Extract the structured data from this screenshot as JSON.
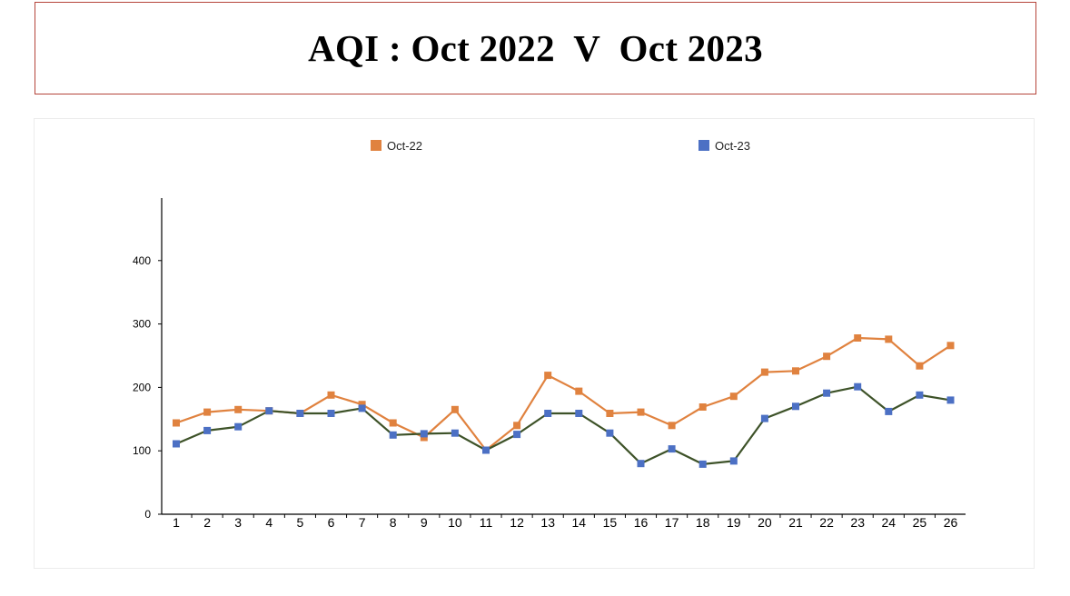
{
  "title": "AQI : Oct 2022  V  Oct 2023",
  "chart_data": {
    "type": "line",
    "categories": [
      "1",
      "2",
      "3",
      "4",
      "5",
      "6",
      "7",
      "8",
      "9",
      "10",
      "11",
      "12",
      "13",
      "14",
      "15",
      "16",
      "17",
      "18",
      "19",
      "20",
      "21",
      "22",
      "23",
      "24",
      "25",
      "26"
    ],
    "series": [
      {
        "name": "Oct-22",
        "line_color": "#e0823f",
        "marker_color": "#e0823f",
        "values": [
          144,
          161,
          165,
          163,
          159,
          188,
          173,
          144,
          121,
          165,
          101,
          140,
          219,
          194,
          159,
          161,
          140,
          169,
          186,
          224,
          226,
          249,
          278,
          276,
          234,
          266
        ]
      },
      {
        "name": "Oct-23",
        "line_color": "#3d5228",
        "marker_color": "#4c70c4",
        "values": [
          111,
          132,
          138,
          163,
          159,
          159,
          167,
          125,
          127,
          128,
          101,
          126,
          159,
          159,
          128,
          80,
          103,
          79,
          84,
          151,
          170,
          191,
          201,
          162,
          188,
          180
        ]
      }
    ],
    "y_ticks": [
      "0",
      "100",
      "200",
      "300",
      "400"
    ],
    "ylim": [
      0,
      500
    ],
    "legend_position": "top",
    "grid": false
  }
}
